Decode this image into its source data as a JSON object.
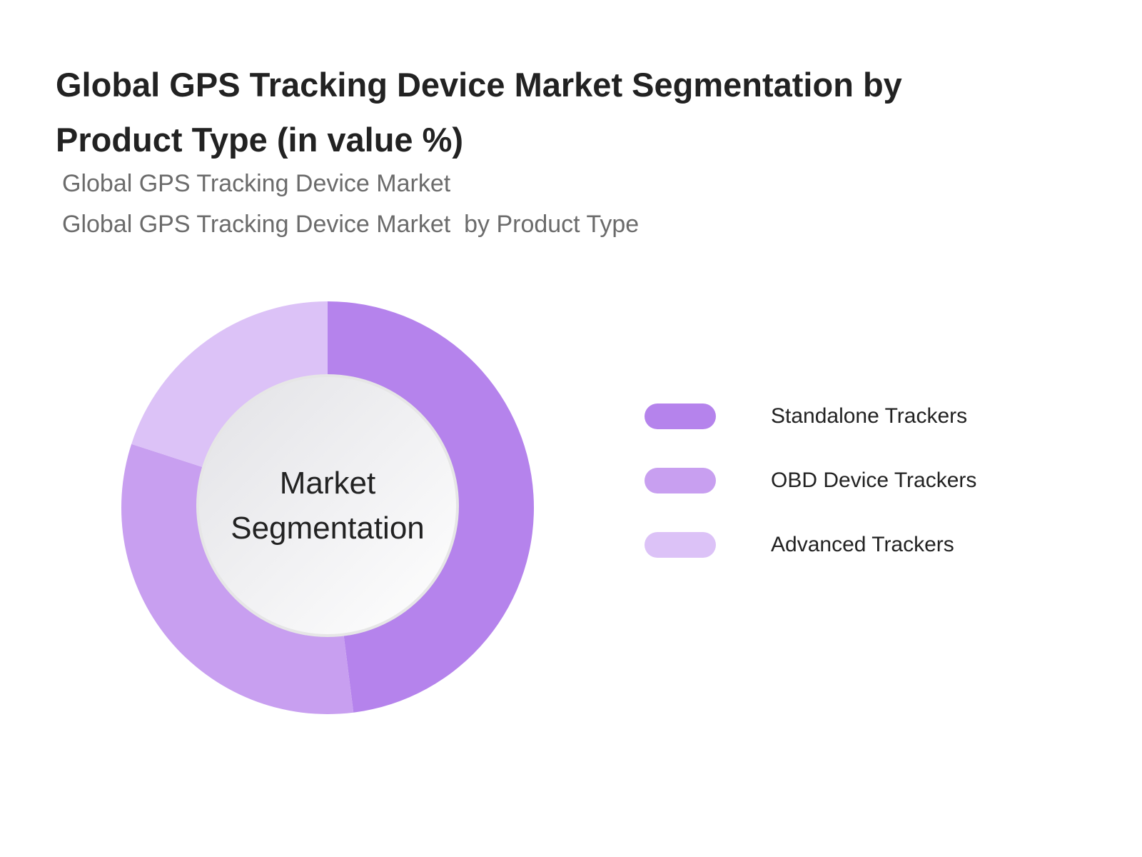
{
  "chart_data": {
    "type": "pie",
    "variant": "donut",
    "title": "Global GPS Tracking Device Market Segmentation by Product Type (in value %)",
    "subtitles": [
      "Global GPS Tracking Device Market",
      "Global GPS Tracking Device Market  by Product Type"
    ],
    "center_label": "Market Segmentation",
    "categories": [
      "Standalone Trackers",
      "OBD Device Trackers",
      "Advanced Trackers"
    ],
    "values": [
      48,
      32,
      20
    ],
    "colors": [
      "#b583ec",
      "#c89ff0",
      "#dcc2f7"
    ],
    "legend_position": "right"
  }
}
